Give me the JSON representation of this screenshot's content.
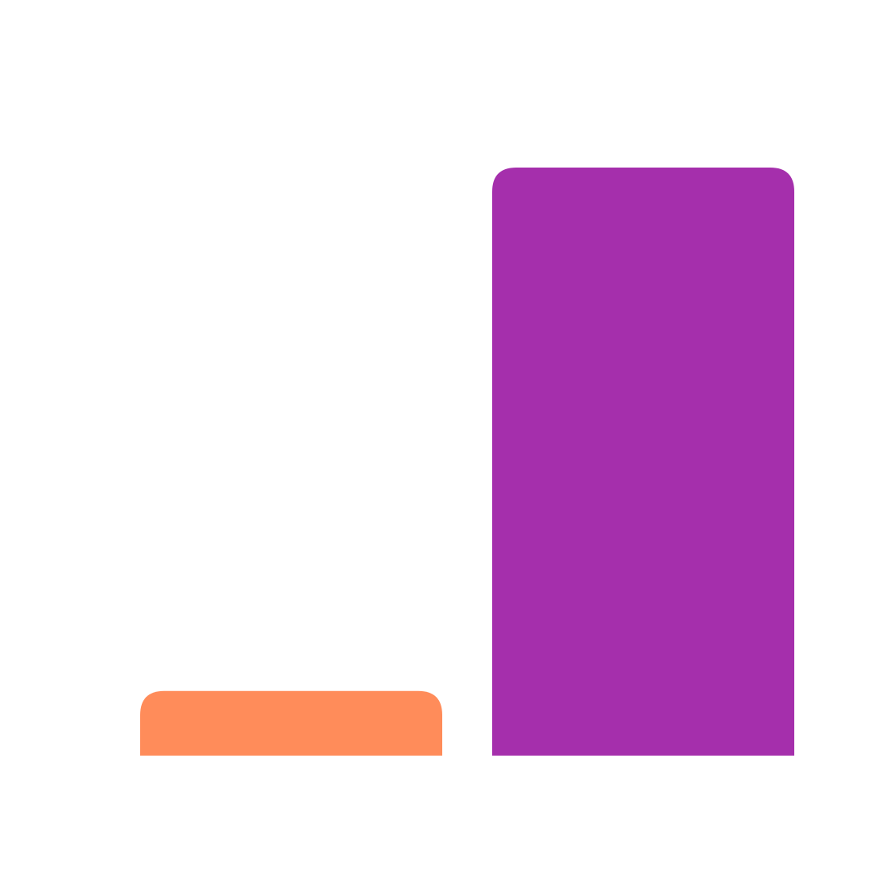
{
  "chart_data": {
    "type": "bar",
    "categories": [
      "",
      ""
    ],
    "values": [
      11,
      100
    ],
    "colors": [
      "#FF8C5A",
      "#A52FAC"
    ],
    "ylim": [
      0,
      100
    ],
    "grid": false,
    "legend": "none",
    "title": "",
    "xlabel": "",
    "ylabel": ""
  }
}
